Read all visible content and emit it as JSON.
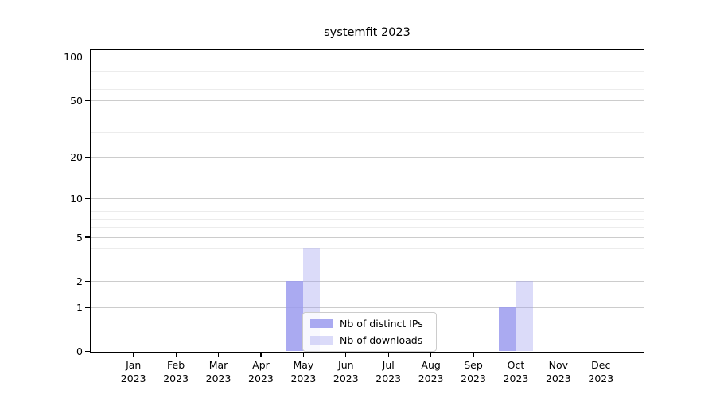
{
  "chart_data": {
    "type": "bar",
    "title": "systemfit 2023",
    "categories": [
      {
        "label": "Jan",
        "sublabel": "2023"
      },
      {
        "label": "Feb",
        "sublabel": "2023"
      },
      {
        "label": "Mar",
        "sublabel": "2023"
      },
      {
        "label": "Apr",
        "sublabel": "2023"
      },
      {
        "label": "May",
        "sublabel": "2023"
      },
      {
        "label": "Jun",
        "sublabel": "2023"
      },
      {
        "label": "Jul",
        "sublabel": "2023"
      },
      {
        "label": "Aug",
        "sublabel": "2023"
      },
      {
        "label": "Sep",
        "sublabel": "2023"
      },
      {
        "label": "Oct",
        "sublabel": "2023"
      },
      {
        "label": "Nov",
        "sublabel": "2023"
      },
      {
        "label": "Dec",
        "sublabel": "2023"
      }
    ],
    "series": [
      {
        "name": "Nb of distinct IPs",
        "color": "rgba(153,153,238,0.83)",
        "solid_color": "#aaaaf1",
        "values": [
          0,
          0,
          0,
          0,
          2,
          0,
          0,
          0,
          0,
          1,
          0,
          0
        ]
      },
      {
        "name": "Nb of downloads",
        "color": "rgba(153,153,238,0.35)",
        "solid_color": "#d9d9f9",
        "values": [
          0,
          0,
          0,
          0,
          4,
          0,
          0,
          0,
          0,
          2,
          0,
          0
        ]
      }
    ],
    "xlabel": "",
    "ylabel": "",
    "y_scale": "log1p",
    "y_ticks": [
      0,
      1,
      2,
      5,
      10,
      20,
      50,
      100
    ],
    "y_minor_ticks": [
      3,
      4,
      6,
      7,
      8,
      9,
      30,
      40,
      60,
      70,
      80,
      90
    ],
    "ylim": [
      0,
      111
    ],
    "grid": true,
    "legend_position": "lower center"
  },
  "colors": {
    "background": "#ffffff",
    "frame": "#000000",
    "major_grid": "#cccccc",
    "minor_grid": "#ececec",
    "legend_border": "#cccccc",
    "legend_background": "rgba(255,255,255,0.8)"
  }
}
